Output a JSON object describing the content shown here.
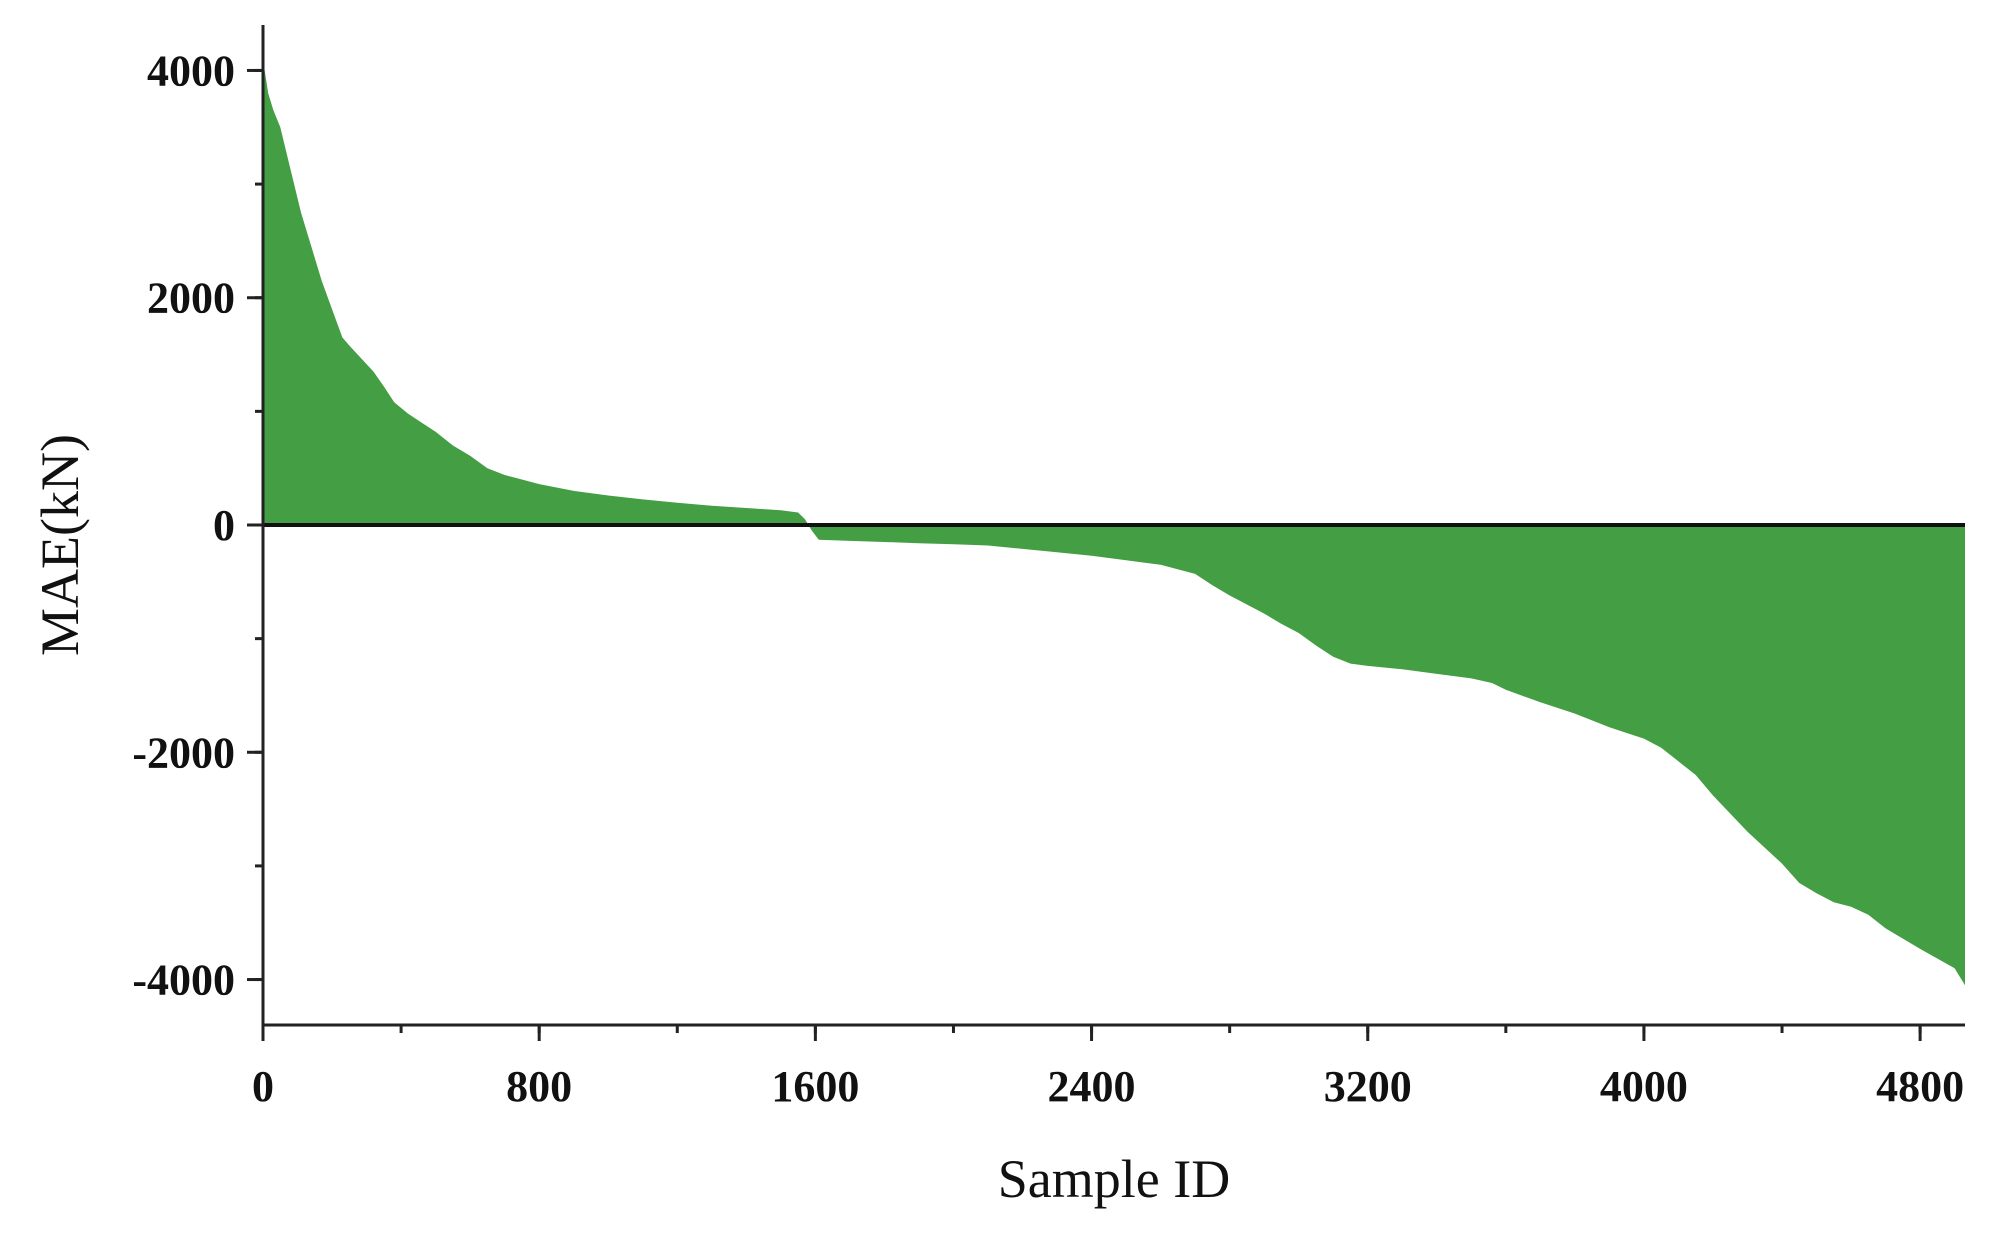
{
  "chart_data": {
    "type": "area",
    "title": "",
    "xlabel": "Sample ID",
    "ylabel": "MAE(kN)",
    "xlim": [
      0,
      4930
    ],
    "ylim": [
      -4400,
      4400
    ],
    "x_ticks": [
      0,
      800,
      1600,
      2400,
      3200,
      4000,
      4800
    ],
    "x_tick_labels": [
      "0",
      "800",
      "1600",
      "2400",
      "3200",
      "4000",
      "4800"
    ],
    "x_minor_step": 400,
    "y_ticks": [
      -4000,
      -2000,
      0,
      2000,
      4000
    ],
    "y_tick_labels": [
      "-4000",
      "-2000",
      "0",
      "2000",
      "4000"
    ],
    "y_minor_step": 1000,
    "grid": false,
    "legend": "none",
    "fill_color": "#449e44",
    "series": [
      {
        "values_x": [
          0,
          5,
          15,
          30,
          50,
          70,
          90,
          110,
          130,
          150,
          170,
          200,
          230,
          250,
          280,
          320,
          350,
          380,
          420,
          460,
          500,
          550,
          600,
          650,
          700,
          750,
          800,
          900,
          1000,
          1100,
          1200,
          1300,
          1400,
          1500,
          1550,
          1570,
          1590,
          1610,
          1700,
          1800,
          1900,
          2000,
          2100,
          2200,
          2300,
          2400,
          2500,
          2600,
          2700,
          2750,
          2800,
          2850,
          2900,
          2950,
          3000,
          3050,
          3100,
          3150,
          3200,
          3300,
          3400,
          3500,
          3560,
          3600,
          3700,
          3800,
          3900,
          3950,
          4000,
          4050,
          4100,
          4150,
          4200,
          4300,
          4400,
          4450,
          4500,
          4550,
          4600,
          4650,
          4700,
          4800,
          4900,
          4930
        ],
        "values_y": [
          4050,
          4000,
          3800,
          3650,
          3500,
          3250,
          3000,
          2750,
          2550,
          2350,
          2150,
          1900,
          1650,
          1580,
          1480,
          1350,
          1220,
          1080,
          980,
          900,
          820,
          700,
          610,
          500,
          440,
          400,
          360,
          300,
          260,
          225,
          195,
          170,
          150,
          130,
          110,
          50,
          -50,
          -130,
          -140,
          -150,
          -160,
          -170,
          -180,
          -210,
          -240,
          -270,
          -310,
          -350,
          -430,
          -530,
          -620,
          -700,
          -780,
          -870,
          -950,
          -1060,
          -1160,
          -1220,
          -1240,
          -1270,
          -1310,
          -1350,
          -1390,
          -1450,
          -1560,
          -1660,
          -1780,
          -1830,
          -1880,
          -1960,
          -2080,
          -2200,
          -2380,
          -2700,
          -2980,
          -3150,
          -3240,
          -3320,
          -3360,
          -3430,
          -3550,
          -3730,
          -3900,
          -4050
        ]
      }
    ]
  }
}
